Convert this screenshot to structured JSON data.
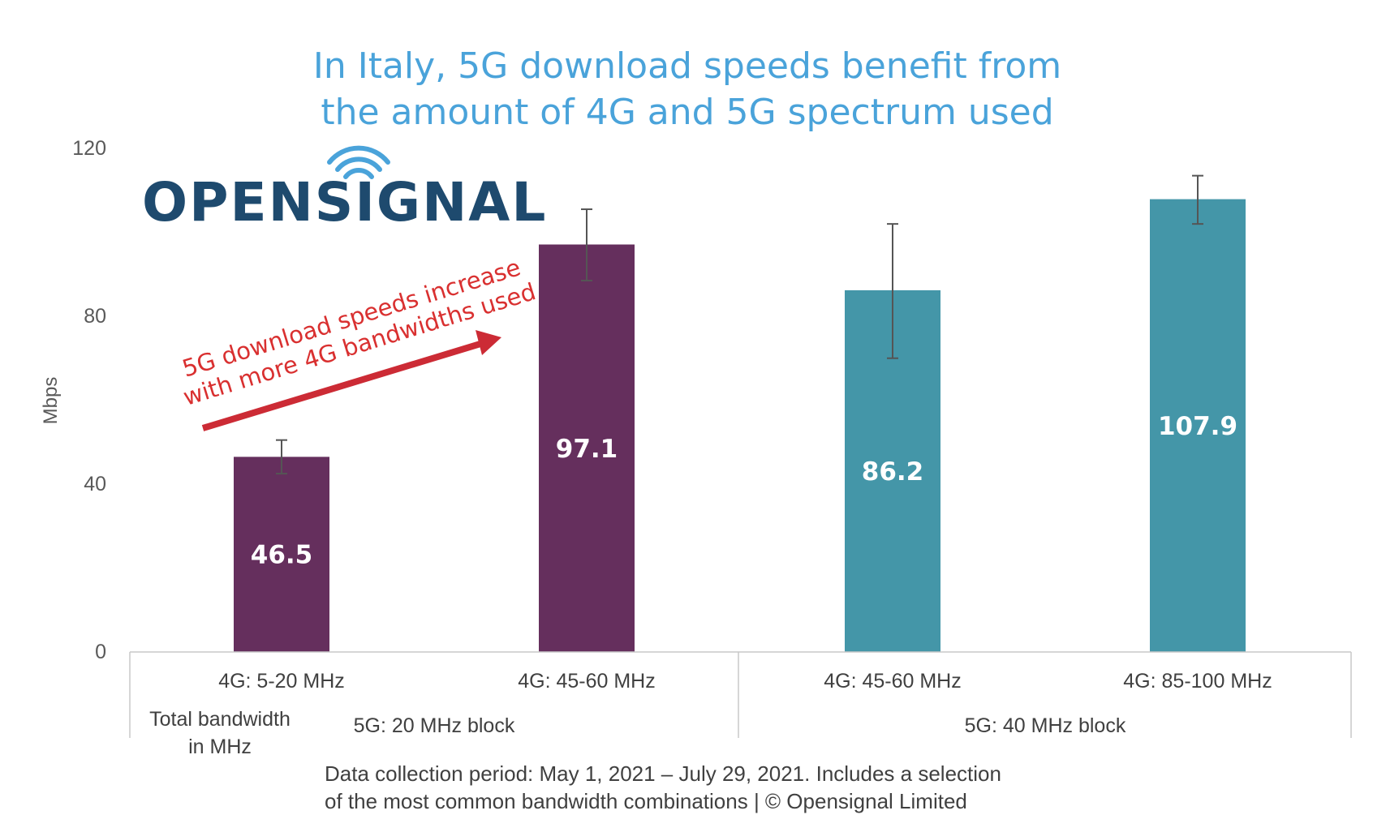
{
  "chart_data": {
    "type": "bar",
    "title_lines": [
      "In Italy, 5G download speeds benefit from",
      "the amount of 4G and 5G spectrum used"
    ],
    "ylabel": "Mbps",
    "ylim": [
      0,
      120
    ],
    "yticks": [
      "0",
      "40",
      "80",
      "120"
    ],
    "categories": [
      "4G: 5-20 MHz",
      "4G: 45-60 MHz",
      "4G: 45-60 MHz",
      "4G: 85-100 MHz"
    ],
    "values": [
      46.5,
      97.1,
      86.2,
      107.9
    ],
    "value_labels": [
      "46.5",
      "97.1",
      "86.2",
      "107.9"
    ],
    "error_low": [
      42.5,
      88.5,
      70.0,
      102.0
    ],
    "error_high": [
      50.5,
      105.5,
      102.0,
      113.5
    ],
    "bar_colors": [
      "#652f5d",
      "#652f5d",
      "#4496a8",
      "#4496a8"
    ],
    "groups": [
      {
        "label": "5G: 20 MHz block",
        "categories": [
          0,
          1
        ]
      },
      {
        "label": "5G: 40 MHz block",
        "categories": [
          2,
          3
        ]
      }
    ],
    "axis_group_title_lines": [
      "Total bandwidth",
      "in MHz"
    ],
    "annotation_lines": [
      "5G download speeds increase",
      "with more 4G bandwidths used"
    ],
    "logo_text": "OPENSIGNAL",
    "footnote_lines": [
      "Data collection period: May 1, 2021 – July 29, 2021. Includes a selection",
      "of the most common bandwidth combinations | © Opensignal Limited"
    ],
    "colors": {
      "title": "#4aa3da",
      "annotation": "#d93030",
      "logo": "#1e4a6e"
    }
  }
}
